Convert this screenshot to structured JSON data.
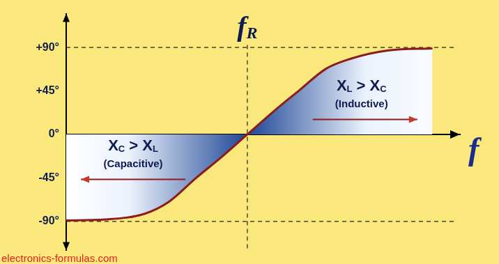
{
  "chart_data": {
    "type": "line",
    "x_label": "f",
    "source": "electronics-formulas.com",
    "x": [
      0,
      1,
      2,
      2.6,
      3.3,
      3.9,
      4.6,
      5.3,
      5.9,
      6.6,
      7.2,
      8.2,
      9.3
    ],
    "values": [
      -89,
      -88,
      -82,
      -70,
      -45,
      -25,
      0,
      25,
      45,
      68,
      78,
      87,
      89
    ],
    "color": "#8b1c1c",
    "xlim": [
      0,
      10
    ],
    "ylim": [
      -120,
      125
    ],
    "yticks": [
      {
        "value": -90,
        "label": "-90°"
      },
      {
        "value": -45,
        "label": "-45°"
      },
      {
        "value": 0,
        "label": "0°"
      },
      {
        "value": 45,
        "label": "+45°"
      },
      {
        "value": 90,
        "label": "+90°"
      }
    ],
    "grid": false,
    "tick_labels": "y",
    "annotations": [
      {
        "text": [
          "fR"
        ],
        "x": 4.6,
        "y": 110
      },
      {
        "text": [
          "XL > XC",
          "(Inductive)"
        ],
        "x": 7.5,
        "y": 50
      },
      {
        "text": [
          "XC > XL",
          "(Capacitive)"
        ],
        "x": 1.7,
        "y": -12
      }
    ]
  }
}
